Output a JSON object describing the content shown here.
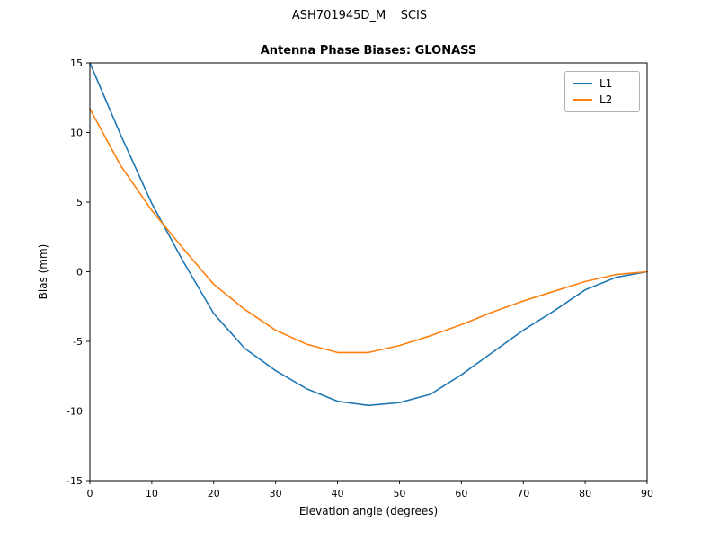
{
  "figure_title": "ASH701945D_M    SCIS",
  "legend": {
    "items": [
      {
        "label": "L1"
      },
      {
        "label": "L2"
      }
    ]
  },
  "chart_data": {
    "type": "line",
    "title": "Antenna Phase Biases: GLONASS",
    "xlabel": "Elevation angle (degrees)",
    "ylabel": "Bias (mm)",
    "xlim": [
      0,
      90
    ],
    "ylim": [
      -15,
      15
    ],
    "xticks": [
      0,
      10,
      20,
      30,
      40,
      50,
      60,
      70,
      80,
      90
    ],
    "yticks": [
      -15,
      -10,
      -5,
      0,
      5,
      10,
      15
    ],
    "grid": false,
    "legend_position": "upper right",
    "x": [
      0,
      5,
      10,
      15,
      20,
      25,
      30,
      35,
      40,
      45,
      50,
      55,
      60,
      65,
      70,
      75,
      80,
      85,
      90
    ],
    "series": [
      {
        "name": "L1",
        "color": "#1f77b4",
        "values": [
          15.0,
          9.8,
          4.9,
          0.8,
          -3.0,
          -5.5,
          -7.1,
          -8.4,
          -9.3,
          -9.6,
          -9.4,
          -8.8,
          -7.4,
          -5.8,
          -4.2,
          -2.8,
          -1.3,
          -0.4,
          0.0
        ]
      },
      {
        "name": "L2",
        "color": "#ff7f0e",
        "values": [
          11.7,
          7.6,
          4.4,
          1.7,
          -0.9,
          -2.7,
          -4.2,
          -5.2,
          -5.8,
          -5.8,
          -5.3,
          -4.6,
          -3.8,
          -2.9,
          -2.1,
          -1.4,
          -0.7,
          -0.2,
          0.0
        ]
      }
    ]
  }
}
